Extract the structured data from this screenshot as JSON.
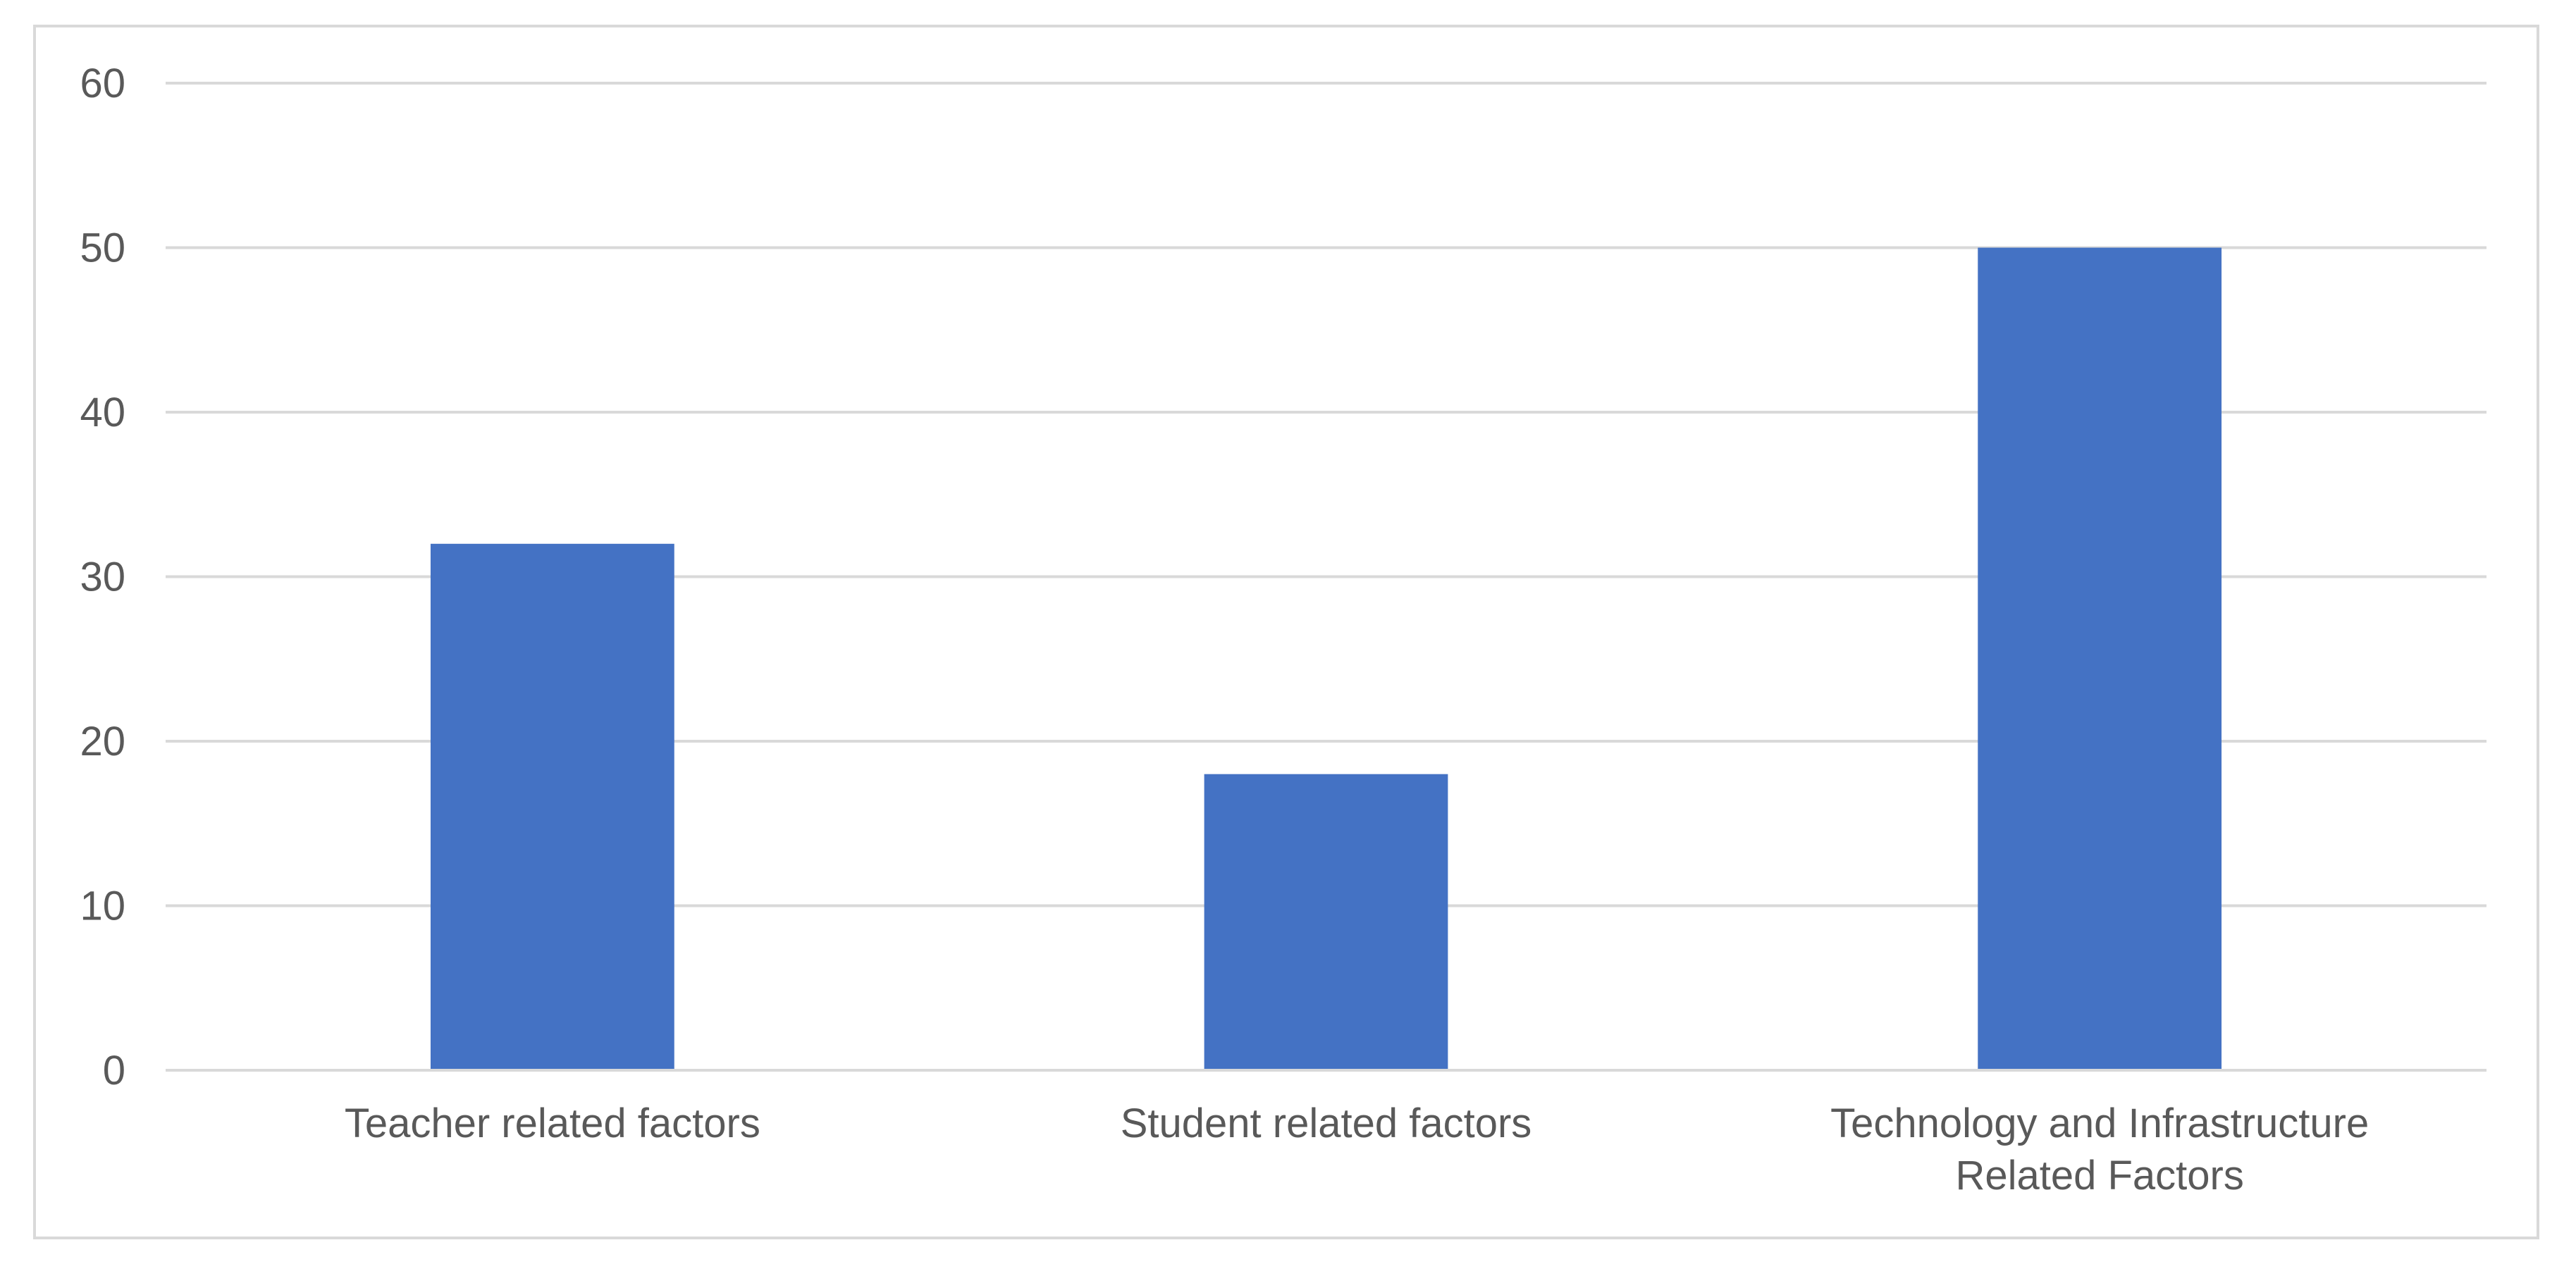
{
  "chart_data": {
    "type": "bar",
    "title": "",
    "xlabel": "",
    "ylabel": "",
    "categories": [
      "Teacher related factors",
      "Student related factors",
      "Technology and Infrastructure Related Factors"
    ],
    "category_label_lines": [
      [
        "Teacher related factors"
      ],
      [
        "Student related factors"
      ],
      [
        "Technology and Infrastructure",
        "Related Factors"
      ]
    ],
    "values": [
      32,
      18,
      50
    ],
    "ylim": [
      0,
      60
    ],
    "yticks": [
      0,
      10,
      20,
      30,
      40,
      50,
      60
    ],
    "grid": true,
    "legend": "none",
    "colors": {
      "bar": "#4472c4",
      "gridline": "#d9d9d9",
      "text": "#595959",
      "frame": "#d9d9d9"
    }
  }
}
